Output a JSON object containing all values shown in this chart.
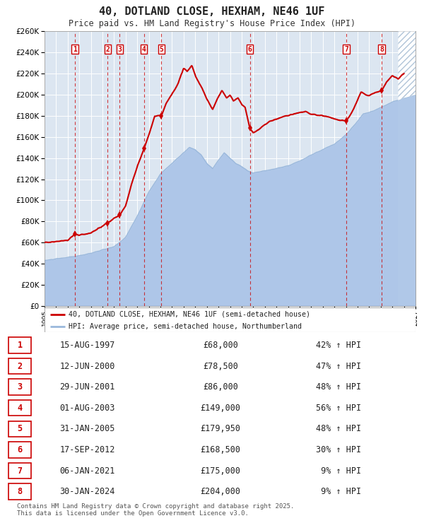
{
  "title": "40, DOTLAND CLOSE, HEXHAM, NE46 1UF",
  "subtitle": "Price paid vs. HM Land Registry's House Price Index (HPI)",
  "background_color": "#dce6f1",
  "hpi_color": "#aec6e8",
  "hpi_line_color": "#9ab8dc",
  "price_color": "#cc0000",
  "transactions": [
    {
      "num": 1,
      "date": "15-AUG-1997",
      "year": 1997.62,
      "price": 68000,
      "pct": "42% ↑ HPI"
    },
    {
      "num": 2,
      "date": "12-JUN-2000",
      "year": 2000.45,
      "price": 78500,
      "pct": "47% ↑ HPI"
    },
    {
      "num": 3,
      "date": "29-JUN-2001",
      "year": 2001.49,
      "price": 86000,
      "pct": "48% ↑ HPI"
    },
    {
      "num": 4,
      "date": "01-AUG-2003",
      "year": 2003.58,
      "price": 149000,
      "pct": "56% ↑ HPI"
    },
    {
      "num": 5,
      "date": "31-JAN-2005",
      "year": 2005.08,
      "price": 179950,
      "pct": "48% ↑ HPI"
    },
    {
      "num": 6,
      "date": "17-SEP-2012",
      "year": 2012.71,
      "price": 168500,
      "pct": "30% ↑ HPI"
    },
    {
      "num": 7,
      "date": "06-JAN-2021",
      "year": 2021.02,
      "price": 175000,
      "pct": " 9% ↑ HPI"
    },
    {
      "num": 8,
      "date": "30-JAN-2024",
      "year": 2024.08,
      "price": 204000,
      "pct": " 9% ↑ HPI"
    }
  ],
  "xmin": 1995,
  "xmax": 2027,
  "ymin": 0,
  "ymax": 260000,
  "yticks": [
    0,
    20000,
    40000,
    60000,
    80000,
    100000,
    120000,
    140000,
    160000,
    180000,
    200000,
    220000,
    240000,
    260000
  ],
  "legend_label_price": "40, DOTLAND CLOSE, HEXHAM, NE46 1UF (semi-detached house)",
  "legend_label_hpi": "HPI: Average price, semi-detached house, Northumberland",
  "footer": "Contains HM Land Registry data © Crown copyright and database right 2025.\nThis data is licensed under the Open Government Licence v3.0.",
  "hpi_anchors": [
    [
      1995.0,
      43000
    ],
    [
      1996.0,
      44500
    ],
    [
      1997.0,
      46000
    ],
    [
      1998.0,
      47500
    ],
    [
      1999.0,
      50000
    ],
    [
      2000.0,
      53000
    ],
    [
      2001.0,
      56000
    ],
    [
      2002.0,
      65000
    ],
    [
      2003.0,
      85000
    ],
    [
      2004.0,
      108000
    ],
    [
      2005.0,
      125000
    ],
    [
      2006.0,
      135000
    ],
    [
      2007.0,
      145000
    ],
    [
      2007.5,
      150000
    ],
    [
      2008.0,
      148000
    ],
    [
      2008.5,
      143000
    ],
    [
      2009.0,
      135000
    ],
    [
      2009.5,
      130000
    ],
    [
      2010.0,
      138000
    ],
    [
      2010.5,
      145000
    ],
    [
      2011.0,
      140000
    ],
    [
      2011.5,
      135000
    ],
    [
      2012.0,
      132000
    ],
    [
      2012.5,
      128000
    ],
    [
      2013.0,
      126000
    ],
    [
      2014.0,
      128000
    ],
    [
      2015.0,
      130000
    ],
    [
      2016.0,
      133000
    ],
    [
      2017.0,
      137000
    ],
    [
      2018.0,
      143000
    ],
    [
      2019.0,
      148000
    ],
    [
      2020.0,
      153000
    ],
    [
      2021.0,
      162000
    ],
    [
      2022.0,
      175000
    ],
    [
      2022.5,
      182000
    ],
    [
      2023.0,
      183000
    ],
    [
      2024.0,
      188000
    ],
    [
      2025.0,
      193000
    ],
    [
      2026.0,
      197000
    ],
    [
      2027.0,
      200000
    ]
  ],
  "prop_anchors": [
    [
      1995.0,
      60000
    ],
    [
      1996.0,
      61000
    ],
    [
      1997.0,
      62000
    ],
    [
      1997.62,
      68000
    ],
    [
      1998.0,
      67000
    ],
    [
      1999.0,
      69000
    ],
    [
      2000.0,
      76000
    ],
    [
      2000.45,
      78500
    ],
    [
      2001.0,
      83000
    ],
    [
      2001.49,
      86000
    ],
    [
      2002.0,
      95000
    ],
    [
      2002.5,
      115000
    ],
    [
      2003.0,
      132000
    ],
    [
      2003.58,
      149000
    ],
    [
      2004.0,
      162000
    ],
    [
      2004.5,
      180000
    ],
    [
      2005.08,
      179950
    ],
    [
      2005.5,
      192000
    ],
    [
      2006.5,
      210000
    ],
    [
      2007.0,
      225000
    ],
    [
      2007.3,
      222000
    ],
    [
      2007.7,
      228000
    ],
    [
      2008.0,
      218000
    ],
    [
      2008.5,
      208000
    ],
    [
      2009.0,
      196000
    ],
    [
      2009.5,
      186000
    ],
    [
      2010.0,
      198000
    ],
    [
      2010.3,
      204000
    ],
    [
      2010.7,
      197000
    ],
    [
      2011.0,
      200000
    ],
    [
      2011.3,
      194000
    ],
    [
      2011.7,
      197000
    ],
    [
      2012.0,
      191000
    ],
    [
      2012.3,
      188000
    ],
    [
      2012.71,
      168500
    ],
    [
      2013.0,
      164000
    ],
    [
      2013.5,
      167000
    ],
    [
      2014.0,
      172000
    ],
    [
      2014.5,
      175000
    ],
    [
      2015.0,
      177000
    ],
    [
      2015.5,
      179000
    ],
    [
      2016.0,
      180000
    ],
    [
      2016.5,
      182000
    ],
    [
      2017.0,
      183000
    ],
    [
      2017.5,
      184000
    ],
    [
      2018.0,
      182000
    ],
    [
      2018.5,
      181000
    ],
    [
      2019.0,
      180000
    ],
    [
      2019.5,
      179000
    ],
    [
      2020.0,
      177000
    ],
    [
      2021.02,
      175000
    ],
    [
      2021.5,
      183000
    ],
    [
      2022.0,
      195000
    ],
    [
      2022.3,
      203000
    ],
    [
      2022.7,
      200000
    ],
    [
      2023.0,
      199000
    ],
    [
      2023.5,
      202000
    ],
    [
      2024.08,
      204000
    ],
    [
      2024.5,
      212000
    ],
    [
      2025.0,
      218000
    ],
    [
      2025.5,
      215000
    ],
    [
      2026.0,
      220000
    ]
  ]
}
